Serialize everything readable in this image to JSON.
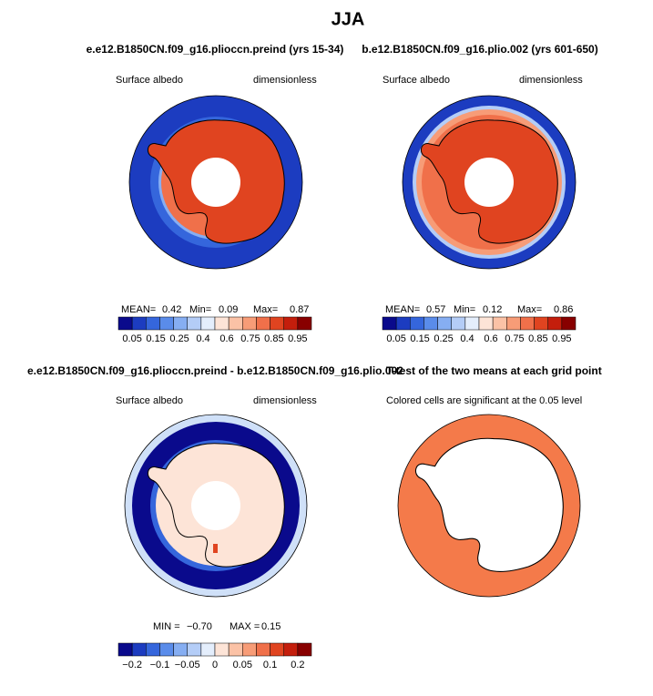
{
  "title": "JJA",
  "panels": [
    {
      "title": "e.e12.B1850CN.f09_g16.plioccn.preind (yrs 15-34)",
      "left_label": "Surface albedo",
      "right_label": "dimensionless",
      "stats": [
        "MEAN=",
        "0.42",
        "Min=",
        "0.09",
        "Max=",
        "0.87"
      ],
      "colorbar": {
        "colors": [
          "#0a0a8c",
          "#1c3cc0",
          "#3566dc",
          "#5a8cea",
          "#86aef2",
          "#b4cdf7",
          "#e4eefc",
          "#fde4d7",
          "#fbc2a6",
          "#f79c77",
          "#f0704a",
          "#e04420",
          "#c41e0c",
          "#880000"
        ],
        "labels": [
          "0.05",
          "0.15",
          "0.25",
          "0.4",
          "0.6",
          "0.75",
          "0.85",
          "0.95"
        ]
      }
    },
    {
      "title": "b.e12.B1850CN.f09_g16.plio.002 (yrs 601-650)",
      "left_label": "Surface albedo",
      "right_label": "dimensionless",
      "stats": [
        "MEAN=",
        "0.57",
        "Min=",
        "0.12",
        "Max=",
        "0.86"
      ],
      "colorbar": {
        "colors": [
          "#0a0a8c",
          "#1c3cc0",
          "#3566dc",
          "#5a8cea",
          "#86aef2",
          "#b4cdf7",
          "#e4eefc",
          "#fde4d7",
          "#fbc2a6",
          "#f79c77",
          "#f0704a",
          "#e04420",
          "#c41e0c",
          "#880000"
        ],
        "labels": [
          "0.05",
          "0.15",
          "0.25",
          "0.4",
          "0.6",
          "0.75",
          "0.85",
          "0.95"
        ]
      }
    },
    {
      "title": "e.e12.B1850CN.f09_g16.plioccn.preind - b.e12.B1850CN.f09_g16.plio.002",
      "left_label": "Surface albedo",
      "right_label": "dimensionless",
      "stats": [
        "MIN =",
        "−0.70",
        "MAX =",
        "0.15"
      ],
      "colorbar": {
        "colors": [
          "#0a0a8c",
          "#1c3cc0",
          "#3566dc",
          "#5a8cea",
          "#86aef2",
          "#b4cdf7",
          "#e4eefc",
          "#fde4d7",
          "#fbc2a6",
          "#f79c77",
          "#f0704a",
          "#e04420",
          "#c41e0c",
          "#880000"
        ],
        "labels": [
          "−0.2",
          "−0.1",
          "−0.05",
          "0",
          "0.05",
          "0.1",
          "0.2"
        ]
      }
    },
    {
      "title": "T-test of the two means at each grid point",
      "left_label": "Colored cells are significant at the 0.05 level"
    }
  ]
}
